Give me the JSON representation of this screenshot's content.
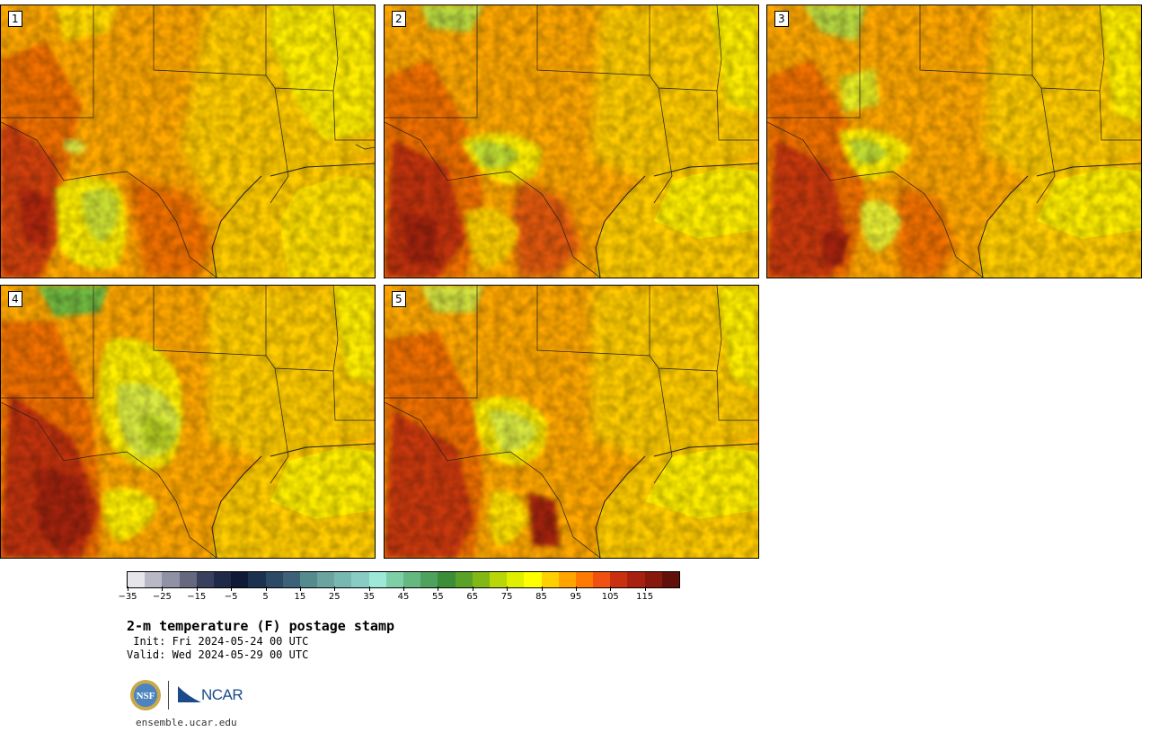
{
  "panels": [
    {
      "label": "1"
    },
    {
      "label": "2"
    },
    {
      "label": "3"
    },
    {
      "label": "4"
    },
    {
      "label": "5"
    }
  ],
  "colorbar": {
    "colors": [
      "#e6e6ea",
      "#b8b8c6",
      "#9191a6",
      "#66687f",
      "#3b3f5e",
      "#1f2a48",
      "#0f1a36",
      "#1c3050",
      "#2c4a66",
      "#3d6278",
      "#558a8e",
      "#6aa3a0",
      "#78b8b2",
      "#88ccc4",
      "#9ee8d8",
      "#7fcfa6",
      "#66b881",
      "#4ea25e",
      "#3c8c38",
      "#59a227",
      "#82b816",
      "#b8d608",
      "#e0ee00",
      "#ffff00",
      "#ffd000",
      "#ffa400",
      "#ff7a00",
      "#f05010",
      "#c83010",
      "#a82010",
      "#88180c",
      "#601008"
    ],
    "tick_labels": [
      "−35",
      "−25",
      "−15",
      "−5",
      "5",
      "15",
      "25",
      "35",
      "45",
      "55",
      "65",
      "75",
      "85",
      "95",
      "105",
      "115"
    ]
  },
  "text": {
    "title": "2-m temperature (F) postage stamp",
    "init": " Init: Fri 2024-05-24 00 UTC",
    "valid": "Valid: Wed 2024-05-29 00 UTC",
    "url": "ensemble.ucar.edu",
    "nsf_logo": "NSF",
    "ncar_logo": "NCAR"
  }
}
